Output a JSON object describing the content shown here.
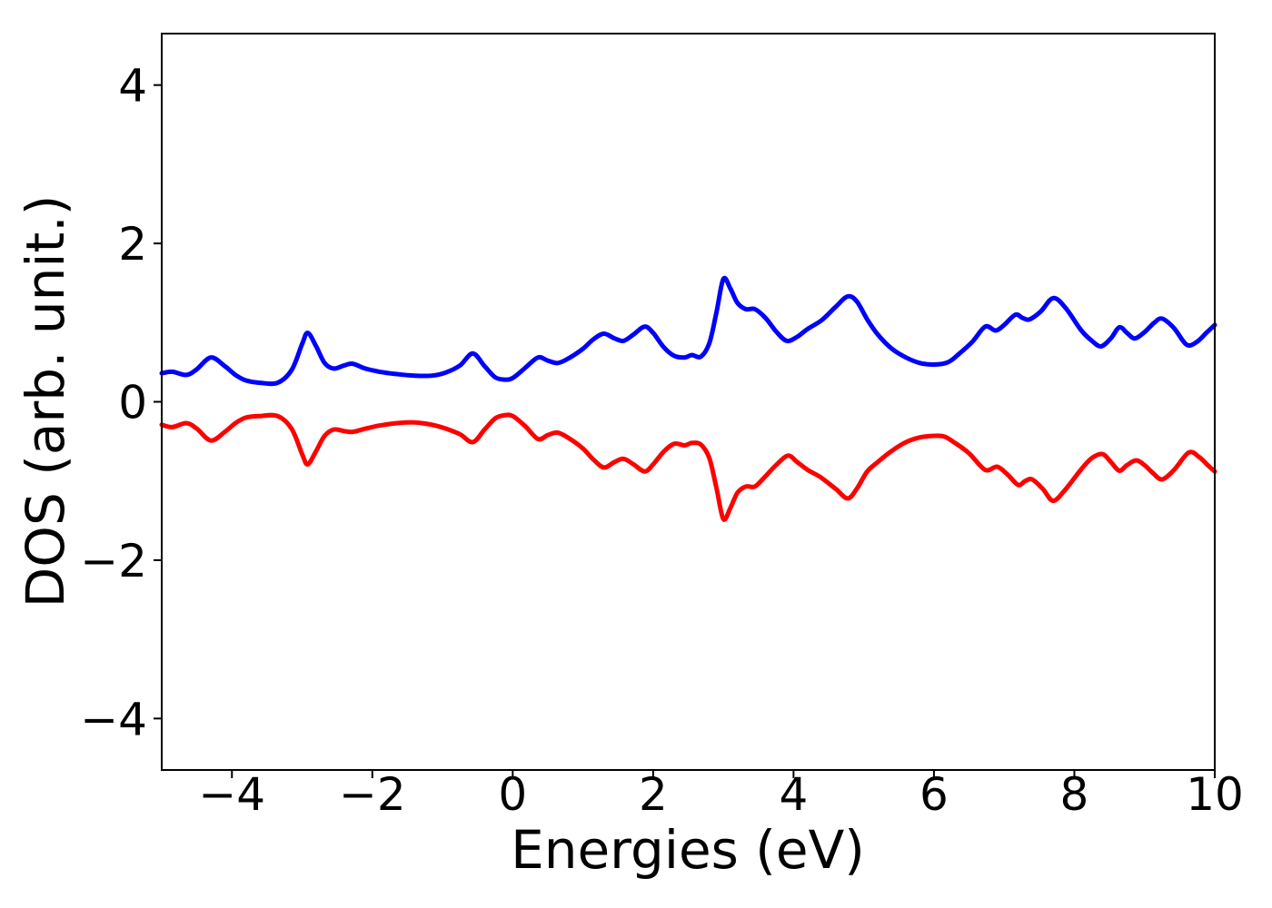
{
  "chart_data": {
    "type": "line",
    "title": "",
    "xlabel": "Energies (eV)",
    "ylabel": "DOS (arb. unit.)",
    "xlim": [
      -5,
      10
    ],
    "ylim": [
      -4.65,
      4.65
    ],
    "x_ticks": [
      -4,
      -2,
      0,
      2,
      4,
      6,
      8,
      10
    ],
    "x_tick_labels": [
      "−4",
      "−2",
      "0",
      "2",
      "4",
      "6",
      "8",
      "10"
    ],
    "y_ticks": [
      -4,
      -2,
      0,
      2,
      4
    ],
    "y_tick_labels": [
      "−4",
      "−2",
      "0",
      "2",
      "4"
    ],
    "grid": false,
    "legend": "none",
    "axis_color": "#000000",
    "series": [
      {
        "name": "blue-curve-positive-dos",
        "color": "#0000ff",
        "line_width": 5,
        "points": [
          [
            -5.0,
            0.36
          ],
          [
            -4.85,
            0.38
          ],
          [
            -4.65,
            0.34
          ],
          [
            -4.5,
            0.41
          ],
          [
            -4.3,
            0.56
          ],
          [
            -4.1,
            0.45
          ],
          [
            -3.95,
            0.34
          ],
          [
            -3.8,
            0.27
          ],
          [
            -3.6,
            0.24
          ],
          [
            -3.35,
            0.24
          ],
          [
            -3.15,
            0.4
          ],
          [
            -3.0,
            0.73
          ],
          [
            -2.92,
            0.87
          ],
          [
            -2.8,
            0.7
          ],
          [
            -2.68,
            0.49
          ],
          [
            -2.55,
            0.42
          ],
          [
            -2.4,
            0.46
          ],
          [
            -2.28,
            0.48
          ],
          [
            -2.1,
            0.42
          ],
          [
            -1.9,
            0.38
          ],
          [
            -1.65,
            0.35
          ],
          [
            -1.4,
            0.33
          ],
          [
            -1.15,
            0.33
          ],
          [
            -0.95,
            0.37
          ],
          [
            -0.75,
            0.46
          ],
          [
            -0.57,
            0.61
          ],
          [
            -0.4,
            0.45
          ],
          [
            -0.25,
            0.31
          ],
          [
            -0.12,
            0.28
          ],
          [
            0.0,
            0.3
          ],
          [
            0.18,
            0.43
          ],
          [
            0.36,
            0.56
          ],
          [
            0.5,
            0.52
          ],
          [
            0.64,
            0.49
          ],
          [
            0.8,
            0.55
          ],
          [
            1.0,
            0.67
          ],
          [
            1.15,
            0.79
          ],
          [
            1.3,
            0.86
          ],
          [
            1.45,
            0.8
          ],
          [
            1.58,
            0.77
          ],
          [
            1.72,
            0.85
          ],
          [
            1.88,
            0.95
          ],
          [
            2.0,
            0.87
          ],
          [
            2.15,
            0.69
          ],
          [
            2.3,
            0.58
          ],
          [
            2.45,
            0.56
          ],
          [
            2.55,
            0.59
          ],
          [
            2.68,
            0.57
          ],
          [
            2.8,
            0.74
          ],
          [
            2.9,
            1.12
          ],
          [
            3.0,
            1.55
          ],
          [
            3.1,
            1.43
          ],
          [
            3.2,
            1.25
          ],
          [
            3.32,
            1.17
          ],
          [
            3.45,
            1.17
          ],
          [
            3.6,
            1.06
          ],
          [
            3.75,
            0.89
          ],
          [
            3.9,
            0.77
          ],
          [
            4.05,
            0.82
          ],
          [
            4.2,
            0.92
          ],
          [
            4.4,
            1.03
          ],
          [
            4.6,
            1.2
          ],
          [
            4.77,
            1.33
          ],
          [
            4.9,
            1.27
          ],
          [
            5.05,
            1.04
          ],
          [
            5.2,
            0.85
          ],
          [
            5.4,
            0.67
          ],
          [
            5.6,
            0.56
          ],
          [
            5.8,
            0.49
          ],
          [
            6.0,
            0.47
          ],
          [
            6.2,
            0.5
          ],
          [
            6.35,
            0.6
          ],
          [
            6.55,
            0.76
          ],
          [
            6.73,
            0.95
          ],
          [
            6.88,
            0.9
          ],
          [
            7.0,
            0.97
          ],
          [
            7.16,
            1.1
          ],
          [
            7.26,
            1.06
          ],
          [
            7.36,
            1.04
          ],
          [
            7.52,
            1.14
          ],
          [
            7.7,
            1.31
          ],
          [
            7.88,
            1.18
          ],
          [
            8.1,
            0.9
          ],
          [
            8.25,
            0.77
          ],
          [
            8.38,
            0.7
          ],
          [
            8.52,
            0.8
          ],
          [
            8.64,
            0.94
          ],
          [
            8.75,
            0.87
          ],
          [
            8.86,
            0.8
          ],
          [
            9.0,
            0.88
          ],
          [
            9.14,
            1.0
          ],
          [
            9.25,
            1.05
          ],
          [
            9.42,
            0.93
          ],
          [
            9.6,
            0.72
          ],
          [
            9.75,
            0.76
          ],
          [
            9.88,
            0.87
          ],
          [
            10.0,
            0.97
          ]
        ]
      },
      {
        "name": "red-curve-negative-dos",
        "color": "#ff0000",
        "line_width": 5,
        "points": [
          [
            -5.0,
            -0.29
          ],
          [
            -4.85,
            -0.32
          ],
          [
            -4.65,
            -0.27
          ],
          [
            -4.5,
            -0.34
          ],
          [
            -4.3,
            -0.49
          ],
          [
            -4.1,
            -0.38
          ],
          [
            -3.95,
            -0.27
          ],
          [
            -3.8,
            -0.2
          ],
          [
            -3.6,
            -0.18
          ],
          [
            -3.35,
            -0.18
          ],
          [
            -3.15,
            -0.34
          ],
          [
            -3.0,
            -0.66
          ],
          [
            -2.92,
            -0.79
          ],
          [
            -2.8,
            -0.62
          ],
          [
            -2.68,
            -0.43
          ],
          [
            -2.55,
            -0.35
          ],
          [
            -2.4,
            -0.37
          ],
          [
            -2.28,
            -0.38
          ],
          [
            -2.1,
            -0.34
          ],
          [
            -1.9,
            -0.3
          ],
          [
            -1.65,
            -0.27
          ],
          [
            -1.4,
            -0.26
          ],
          [
            -1.15,
            -0.29
          ],
          [
            -0.95,
            -0.34
          ],
          [
            -0.75,
            -0.41
          ],
          [
            -0.57,
            -0.51
          ],
          [
            -0.4,
            -0.35
          ],
          [
            -0.25,
            -0.21
          ],
          [
            -0.12,
            -0.17
          ],
          [
            0.0,
            -0.18
          ],
          [
            0.18,
            -0.31
          ],
          [
            0.36,
            -0.47
          ],
          [
            0.5,
            -0.42
          ],
          [
            0.64,
            -0.39
          ],
          [
            0.8,
            -0.46
          ],
          [
            1.0,
            -0.59
          ],
          [
            1.15,
            -0.73
          ],
          [
            1.3,
            -0.83
          ],
          [
            1.45,
            -0.76
          ],
          [
            1.58,
            -0.72
          ],
          [
            1.72,
            -0.79
          ],
          [
            1.88,
            -0.88
          ],
          [
            2.0,
            -0.79
          ],
          [
            2.15,
            -0.63
          ],
          [
            2.3,
            -0.53
          ],
          [
            2.45,
            -0.55
          ],
          [
            2.55,
            -0.52
          ],
          [
            2.68,
            -0.54
          ],
          [
            2.8,
            -0.71
          ],
          [
            2.9,
            -1.08
          ],
          [
            3.0,
            -1.48
          ],
          [
            3.1,
            -1.34
          ],
          [
            3.2,
            -1.15
          ],
          [
            3.32,
            -1.07
          ],
          [
            3.45,
            -1.07
          ],
          [
            3.6,
            -0.94
          ],
          [
            3.75,
            -0.8
          ],
          [
            3.92,
            -0.68
          ],
          [
            4.05,
            -0.76
          ],
          [
            4.2,
            -0.86
          ],
          [
            4.38,
            -0.95
          ],
          [
            4.6,
            -1.1
          ],
          [
            4.77,
            -1.22
          ],
          [
            4.9,
            -1.1
          ],
          [
            5.05,
            -0.88
          ],
          [
            5.2,
            -0.76
          ],
          [
            5.4,
            -0.62
          ],
          [
            5.6,
            -0.51
          ],
          [
            5.8,
            -0.45
          ],
          [
            6.0,
            -0.43
          ],
          [
            6.15,
            -0.44
          ],
          [
            6.3,
            -0.52
          ],
          [
            6.5,
            -0.65
          ],
          [
            6.73,
            -0.86
          ],
          [
            6.9,
            -0.82
          ],
          [
            7.05,
            -0.92
          ],
          [
            7.2,
            -1.05
          ],
          [
            7.3,
            -1.0
          ],
          [
            7.4,
            -0.98
          ],
          [
            7.55,
            -1.1
          ],
          [
            7.7,
            -1.25
          ],
          [
            7.88,
            -1.1
          ],
          [
            8.1,
            -0.85
          ],
          [
            8.25,
            -0.71
          ],
          [
            8.4,
            -0.66
          ],
          [
            8.52,
            -0.76
          ],
          [
            8.64,
            -0.87
          ],
          [
            8.75,
            -0.8
          ],
          [
            8.88,
            -0.74
          ],
          [
            9.0,
            -0.8
          ],
          [
            9.12,
            -0.9
          ],
          [
            9.25,
            -0.98
          ],
          [
            9.42,
            -0.86
          ],
          [
            9.63,
            -0.64
          ],
          [
            9.78,
            -0.7
          ],
          [
            9.9,
            -0.8
          ],
          [
            10.0,
            -0.88
          ]
        ]
      }
    ]
  }
}
